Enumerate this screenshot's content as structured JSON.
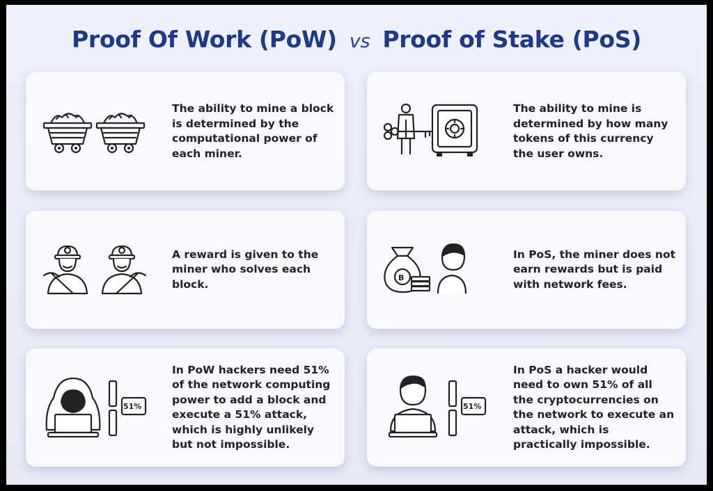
{
  "title": {
    "left": "Proof Of Work (PoW)",
    "vs": "vs",
    "right": "Proof of Stake (PoS)"
  },
  "pow": [
    {
      "text": "The ability to mine a block is determined by the computational power of each miner.",
      "icon": "mine-carts-icon"
    },
    {
      "text": "A reward is given to the miner who solves each block.",
      "icon": "miners-icon"
    },
    {
      "text": "In PoW hackers need 51% of the network computing power to add a block and execute a 51% attack, which is highly unlikely but not impossible.",
      "icon": "hacker-icon",
      "badge": "51%"
    }
  ],
  "pos": [
    {
      "text": "The ability to mine is determined by how many tokens of this currency the user owns.",
      "icon": "safe-with-key-icon"
    },
    {
      "text": "In PoS, the miner does not earn rewards but is paid with network fees.",
      "icon": "bitcoin-bag-icon"
    },
    {
      "text": "In PoS a hacker would need to own 51% of all the cryptocurrencies on the network to execute an attack, which is practically impossible.",
      "icon": "user-laptop-icon",
      "badge": "51%"
    }
  ],
  "colors": {
    "title": "#1f3a85",
    "card": "#f8f9fe",
    "background": "#e9ecf8"
  }
}
